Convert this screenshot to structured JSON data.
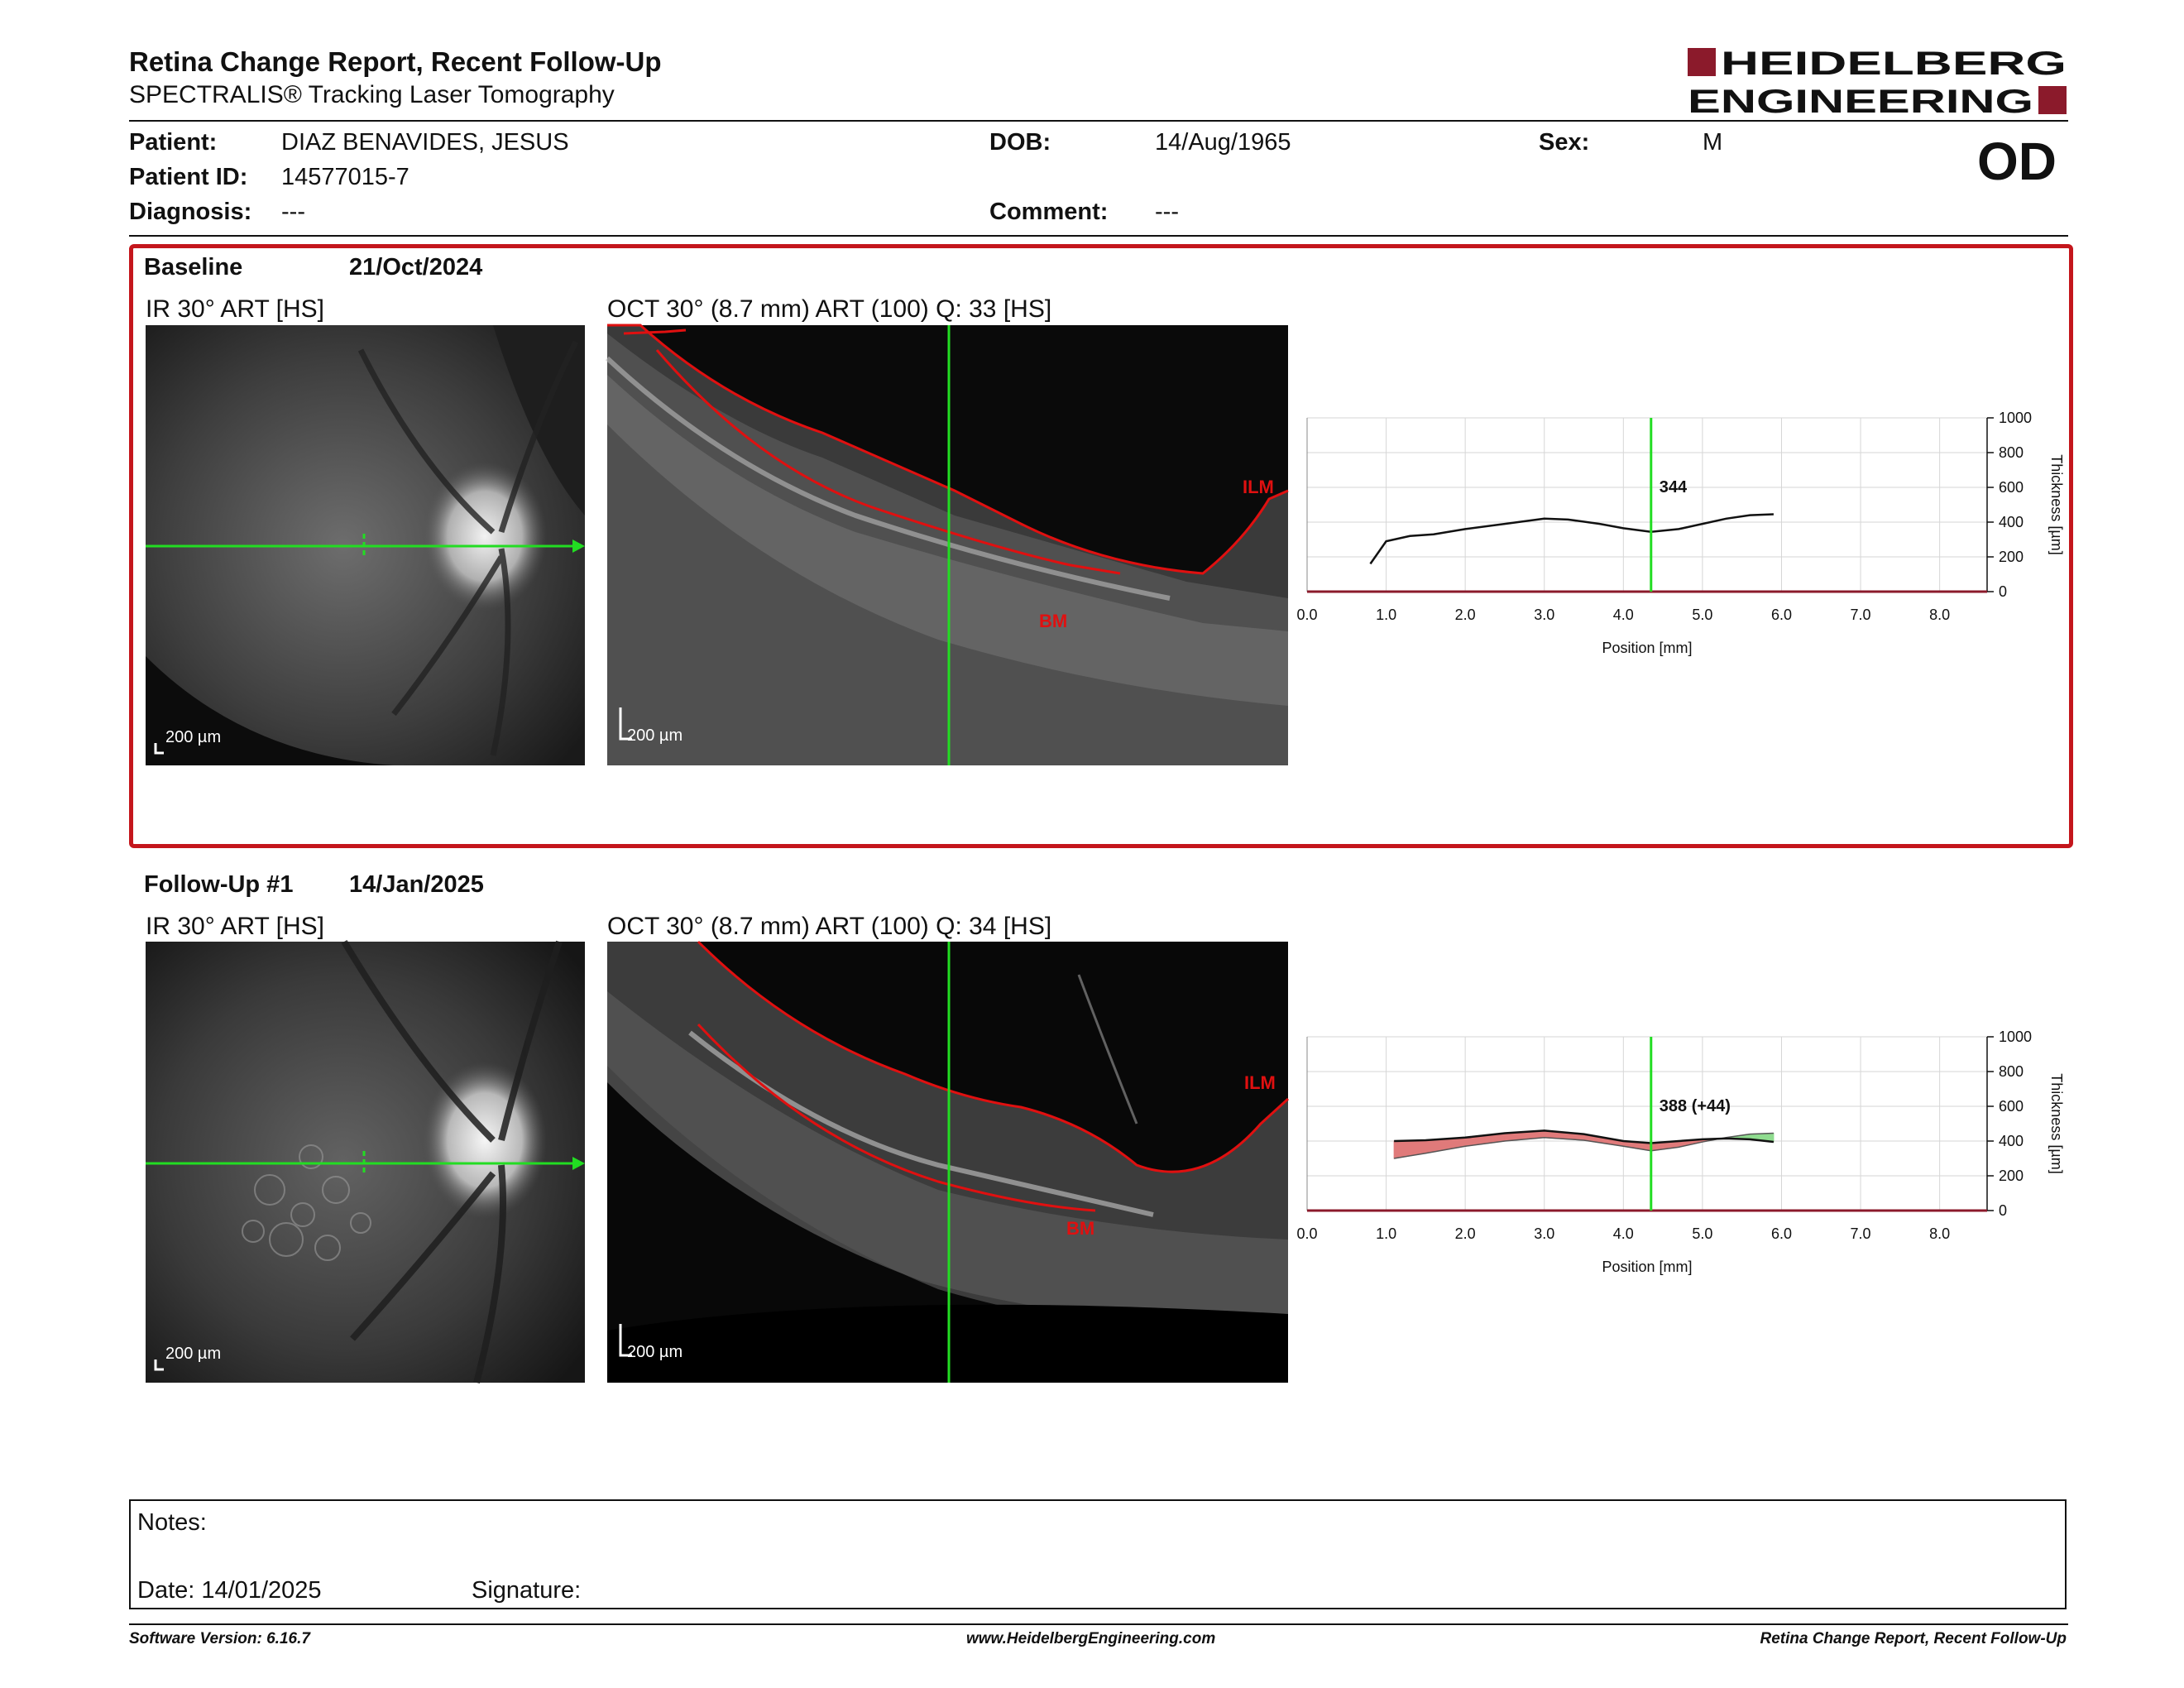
{
  "header": {
    "title": "Retina Change Report, Recent Follow-Up",
    "subtitle": "SPECTRALIS® Tracking Laser Tomography",
    "logo_line1": "HEIDELBERG",
    "logo_line2": "ENGINEERING",
    "brand_color": "#8b1a2b"
  },
  "patient": {
    "patient_label": "Patient:",
    "patient_value": "DIAZ BENAVIDES, JESUS",
    "dob_label": "DOB:",
    "dob_value": "14/Aug/1965",
    "sex_label": "Sex:",
    "sex_value": "M",
    "id_label": "Patient ID:",
    "id_value": "14577015-7",
    "diagnosis_label": "Diagnosis:",
    "diagnosis_value": "---",
    "comment_label": "Comment:",
    "comment_value": "---",
    "eye": "OD"
  },
  "baseline": {
    "label": "Baseline",
    "date": "21/Oct/2024",
    "ir_label": "IR 30° ART [HS]",
    "oct_label": "OCT 30° (8.7 mm) ART (100) Q: 33 [HS]",
    "ir_scale": "200 µm",
    "oct_scale": "200 µm",
    "ilm": "ILM",
    "bm": "BM"
  },
  "followup": {
    "label": "Follow-Up #1",
    "date": "14/Jan/2025",
    "ir_label": "IR 30° ART [HS]",
    "oct_label": "OCT 30° (8.7 mm) ART (100) Q: 34 [HS]",
    "ir_scale": "200 µm",
    "oct_scale": "200 µm",
    "ilm": "ILM",
    "bm": "BM"
  },
  "chart_data": [
    {
      "type": "line",
      "xlabel": "Position [mm]",
      "ylabel": "Thickness [µm]",
      "xlim": [
        0,
        8.6
      ],
      "ylim": [
        0,
        1000
      ],
      "x_ticks": [
        "0.0",
        "1.0",
        "2.0",
        "3.0",
        "4.0",
        "5.0",
        "6.0",
        "7.0",
        "8.0"
      ],
      "y_ticks": [
        "0",
        "200",
        "400",
        "600",
        "800",
        "1000"
      ],
      "marker_x": 4.35,
      "marker_label": "344",
      "series": [
        {
          "x": [
            0.8,
            1.0,
            1.3,
            1.6,
            2.0,
            2.5,
            3.0,
            3.3,
            3.7,
            4.0,
            4.35,
            4.7,
            5.0,
            5.3,
            5.6,
            5.9
          ],
          "values": [
            160,
            290,
            320,
            330,
            360,
            390,
            420,
            415,
            390,
            365,
            344,
            360,
            390,
            420,
            440,
            445
          ]
        }
      ]
    },
    {
      "type": "area",
      "xlabel": "Position [mm]",
      "ylabel": "Thickness [µm]",
      "xlim": [
        0,
        8.6
      ],
      "ylim": [
        0,
        1000
      ],
      "x_ticks": [
        "0.0",
        "1.0",
        "2.0",
        "3.0",
        "4.0",
        "5.0",
        "6.0",
        "7.0",
        "8.0"
      ],
      "y_ticks": [
        "0",
        "200",
        "400",
        "600",
        "800",
        "1000"
      ],
      "marker_x": 4.35,
      "marker_label": "388 (+44)",
      "series": [
        {
          "x": [
            1.1,
            1.5,
            2.0,
            2.5,
            3.0,
            3.5,
            4.0,
            4.35,
            4.7,
            5.0,
            5.3,
            5.6,
            5.9
          ],
          "values": [
            400,
            405,
            420,
            445,
            460,
            440,
            400,
            388,
            400,
            410,
            415,
            410,
            395
          ]
        },
        {
          "x": [
            1.1,
            1.5,
            2.0,
            2.5,
            3.0,
            3.5,
            4.0,
            4.35,
            4.7,
            5.0,
            5.3,
            5.6,
            5.9
          ],
          "values": [
            300,
            330,
            370,
            400,
            420,
            405,
            370,
            344,
            365,
            395,
            420,
            440,
            445
          ]
        }
      ],
      "colors": {
        "increase": "#e07a7a",
        "decrease": "#8fdc8f"
      }
    }
  ],
  "notes": {
    "notes_label": "Notes:",
    "date_label": "Date: 14/01/2025",
    "signature_label": "Signature:"
  },
  "footer": {
    "left": "Software Version: 6.16.7",
    "center": "www.HeidelbergEngineering.com",
    "right": "Retina Change Report, Recent Follow-Up"
  }
}
